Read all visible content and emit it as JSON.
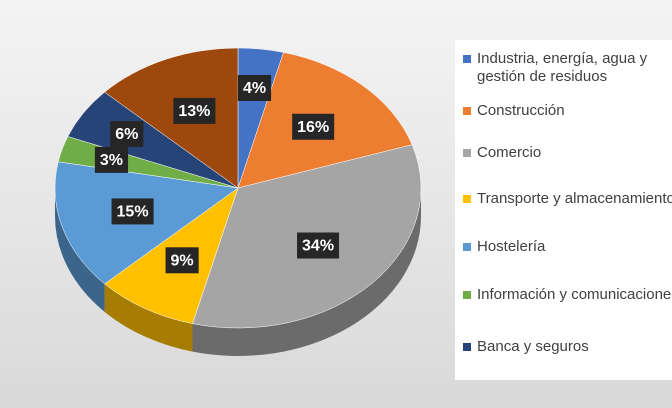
{
  "chart_data": {
    "type": "pie",
    "categories": [
      "Industria, energía, agua y gestión de residuos",
      "Construcción",
      "Comercio",
      "Transporte y almacenamiento",
      "Hostelería",
      "Información y comunicaciones",
      "Banca y seguros",
      null
    ],
    "values": [
      4,
      16,
      34,
      9,
      15,
      3,
      6,
      13
    ],
    "value_labels": [
      "4%",
      "16%",
      "34%",
      "9%",
      "15%",
      "3%",
      "6%",
      "13%"
    ],
    "colors": [
      "#4472c4",
      "#ed7d31",
      "#a5a5a5",
      "#ffc000",
      "#5b9bd5",
      "#70ad47",
      "#264478",
      "#9e480e"
    ],
    "legend": "right"
  }
}
